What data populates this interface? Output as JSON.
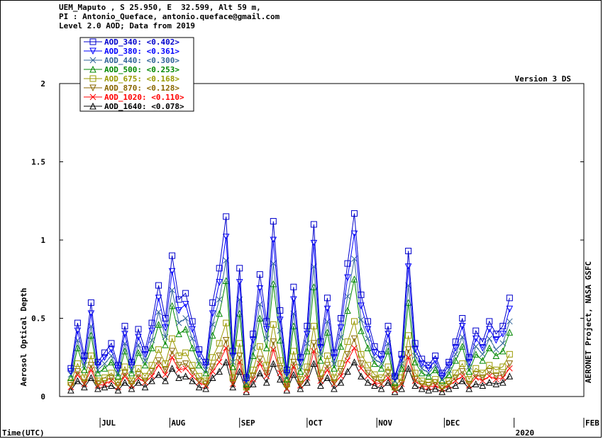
{
  "header": {
    "line1": "UEM_Maputo , S 25.950, E  32.599, Alt 59 m,",
    "line2": "PI : Antonio_Queface, antonio.queface@gmail.com",
    "line3": "Level 2.0 AOD; Data from 2019"
  },
  "version_label": "Version 3 DS",
  "right_label": "AERONET Project, NASA GSFC",
  "chart_data": {
    "type": "line",
    "xlabel": "Time(UTC)",
    "ylabel": "Aerosol Optical Depth",
    "ylim": [
      0,
      2
    ],
    "yticks": [
      "0",
      "0.5",
      "1",
      "1.5",
      "2"
    ],
    "xlim": [
      "2019-06-13",
      "2020-02-01"
    ],
    "x_ticks": [
      {
        "date": "2019-07-01",
        "label": "JUL"
      },
      {
        "date": "2019-08-01",
        "label": "AUG"
      },
      {
        "date": "2019-09-01",
        "label": "SEP"
      },
      {
        "date": "2019-10-01",
        "label": "OCT"
      },
      {
        "date": "2019-11-01",
        "label": "NOV"
      },
      {
        "date": "2019-12-01",
        "label": "DEC"
      },
      {
        "date": "2020-01-01",
        "label": "2020"
      },
      {
        "date": "2020-02-01",
        "label": "FEB"
      }
    ],
    "legend_position": "top-left",
    "dates": [
      "2019-06-18",
      "2019-06-21",
      "2019-06-24",
      "2019-06-27",
      "2019-06-30",
      "2019-07-03",
      "2019-07-06",
      "2019-07-09",
      "2019-07-12",
      "2019-07-15",
      "2019-07-18",
      "2019-07-21",
      "2019-07-24",
      "2019-07-27",
      "2019-07-30",
      "2019-08-02",
      "2019-08-05",
      "2019-08-08",
      "2019-08-11",
      "2019-08-14",
      "2019-08-17",
      "2019-08-20",
      "2019-08-23",
      "2019-08-26",
      "2019-08-29",
      "2019-09-01",
      "2019-09-04",
      "2019-09-07",
      "2019-09-10",
      "2019-09-13",
      "2019-09-16",
      "2019-09-19",
      "2019-09-22",
      "2019-09-25",
      "2019-09-28",
      "2019-10-01",
      "2019-10-04",
      "2019-10-07",
      "2019-10-10",
      "2019-10-13",
      "2019-10-16",
      "2019-10-19",
      "2019-10-22",
      "2019-10-25",
      "2019-10-28",
      "2019-10-31",
      "2019-11-03",
      "2019-11-06",
      "2019-11-09",
      "2019-11-12",
      "2019-11-15",
      "2019-11-18",
      "2019-11-21",
      "2019-11-24",
      "2019-11-27",
      "2019-11-30",
      "2019-12-03",
      "2019-12-06",
      "2019-12-09",
      "2019-12-12",
      "2019-12-15",
      "2019-12-18",
      "2019-12-21",
      "2019-12-24",
      "2019-12-27",
      "2019-12-30"
    ],
    "series": [
      {
        "name": "AOD_340",
        "mean": "<0.402>",
        "color": "#0000cc",
        "marker": "square",
        "values": [
          0.18,
          0.47,
          0.26,
          0.6,
          0.22,
          0.28,
          0.34,
          0.2,
          0.45,
          0.22,
          0.43,
          0.3,
          0.47,
          0.71,
          0.5,
          0.9,
          0.62,
          0.66,
          0.48,
          0.3,
          0.22,
          0.6,
          0.82,
          1.15,
          0.29,
          0.82,
          0.12,
          0.4,
          0.78,
          0.48,
          1.12,
          0.55,
          0.17,
          0.7,
          0.25,
          0.45,
          1.1,
          0.35,
          0.63,
          0.28,
          0.5,
          0.85,
          1.17,
          0.65,
          0.48,
          0.32,
          0.27,
          0.45,
          0.13,
          0.27,
          0.93,
          0.34,
          0.24,
          0.2,
          0.26,
          0.15,
          0.22,
          0.35,
          0.5,
          0.25,
          0.42,
          0.35,
          0.48,
          0.4,
          0.45,
          0.63
        ]
      },
      {
        "name": "AOD_380",
        "mean": "<0.361>",
        "color": "#0000ff",
        "marker": "triangle-down",
        "values": [
          0.16,
          0.42,
          0.23,
          0.53,
          0.2,
          0.25,
          0.3,
          0.18,
          0.4,
          0.2,
          0.38,
          0.27,
          0.42,
          0.63,
          0.44,
          0.8,
          0.55,
          0.59,
          0.43,
          0.27,
          0.2,
          0.53,
          0.73,
          1.02,
          0.26,
          0.73,
          0.11,
          0.36,
          0.69,
          0.43,
          1.0,
          0.49,
          0.15,
          0.62,
          0.22,
          0.4,
          0.98,
          0.31,
          0.56,
          0.25,
          0.44,
          0.76,
          1.04,
          0.58,
          0.43,
          0.28,
          0.24,
          0.4,
          0.12,
          0.24,
          0.83,
          0.3,
          0.21,
          0.18,
          0.23,
          0.13,
          0.2,
          0.31,
          0.45,
          0.22,
          0.37,
          0.31,
          0.43,
          0.36,
          0.4,
          0.56
        ]
      },
      {
        "name": "AOD_440",
        "mean": "<0.300>",
        "color": "#336699",
        "marker": "x",
        "values": [
          0.14,
          0.36,
          0.2,
          0.45,
          0.17,
          0.21,
          0.26,
          0.15,
          0.34,
          0.17,
          0.33,
          0.23,
          0.36,
          0.54,
          0.38,
          0.68,
          0.47,
          0.5,
          0.37,
          0.23,
          0.17,
          0.46,
          0.62,
          0.87,
          0.22,
          0.62,
          0.09,
          0.31,
          0.59,
          0.37,
          0.85,
          0.42,
          0.13,
          0.53,
          0.19,
          0.34,
          0.83,
          0.27,
          0.48,
          0.21,
          0.38,
          0.64,
          0.88,
          0.49,
          0.37,
          0.24,
          0.21,
          0.34,
          0.1,
          0.21,
          0.71,
          0.26,
          0.18,
          0.15,
          0.2,
          0.11,
          0.17,
          0.27,
          0.38,
          0.19,
          0.32,
          0.27,
          0.37,
          0.3,
          0.34,
          0.48
        ]
      },
      {
        "name": "AOD_500",
        "mean": "<0.253>",
        "color": "#008800",
        "marker": "triangle-up",
        "values": [
          0.12,
          0.31,
          0.17,
          0.39,
          0.15,
          0.18,
          0.22,
          0.13,
          0.29,
          0.15,
          0.28,
          0.2,
          0.31,
          0.46,
          0.33,
          0.58,
          0.4,
          0.43,
          0.31,
          0.2,
          0.15,
          0.39,
          0.53,
          0.74,
          0.19,
          0.53,
          0.08,
          0.26,
          0.5,
          0.31,
          0.72,
          0.36,
          0.11,
          0.45,
          0.16,
          0.29,
          0.7,
          0.23,
          0.41,
          0.18,
          0.32,
          0.55,
          0.75,
          0.42,
          0.31,
          0.21,
          0.18,
          0.29,
          0.09,
          0.18,
          0.6,
          0.22,
          0.15,
          0.13,
          0.17,
          0.1,
          0.14,
          0.23,
          0.32,
          0.16,
          0.27,
          0.23,
          0.31,
          0.26,
          0.29,
          0.41
        ]
      },
      {
        "name": "AOD_675",
        "mean": "<0.168>",
        "color": "#999900",
        "marker": "square",
        "values": [
          0.09,
          0.21,
          0.12,
          0.26,
          0.1,
          0.12,
          0.15,
          0.09,
          0.19,
          0.1,
          0.18,
          0.13,
          0.2,
          0.3,
          0.21,
          0.37,
          0.26,
          0.28,
          0.2,
          0.13,
          0.1,
          0.25,
          0.34,
          0.47,
          0.12,
          0.34,
          0.06,
          0.17,
          0.32,
          0.2,
          0.46,
          0.23,
          0.08,
          0.29,
          0.11,
          0.19,
          0.45,
          0.15,
          0.26,
          0.12,
          0.21,
          0.35,
          0.48,
          0.27,
          0.2,
          0.14,
          0.12,
          0.19,
          0.06,
          0.12,
          0.39,
          0.15,
          0.1,
          0.09,
          0.11,
          0.07,
          0.1,
          0.15,
          0.21,
          0.11,
          0.18,
          0.15,
          0.2,
          0.17,
          0.19,
          0.27
        ]
      },
      {
        "name": "AOD_870",
        "mean": "<0.128>",
        "color": "#886600",
        "marker": "triangle-down",
        "values": [
          0.07,
          0.16,
          0.09,
          0.2,
          0.08,
          0.1,
          0.12,
          0.07,
          0.15,
          0.08,
          0.14,
          0.1,
          0.16,
          0.23,
          0.17,
          0.29,
          0.2,
          0.21,
          0.16,
          0.1,
          0.08,
          0.19,
          0.26,
          0.36,
          0.09,
          0.26,
          0.05,
          0.13,
          0.24,
          0.15,
          0.35,
          0.18,
          0.06,
          0.22,
          0.08,
          0.15,
          0.34,
          0.11,
          0.2,
          0.09,
          0.16,
          0.27,
          0.37,
          0.21,
          0.15,
          0.11,
          0.09,
          0.15,
          0.05,
          0.09,
          0.3,
          0.11,
          0.08,
          0.07,
          0.09,
          0.05,
          0.08,
          0.12,
          0.16,
          0.08,
          0.14,
          0.12,
          0.16,
          0.13,
          0.14,
          0.21
        ]
      },
      {
        "name": "AOD_1020",
        "mean": "<0.110>",
        "color": "#ff0000",
        "marker": "x",
        "values": [
          0.06,
          0.14,
          0.08,
          0.17,
          0.07,
          0.08,
          0.1,
          0.06,
          0.13,
          0.07,
          0.12,
          0.09,
          0.13,
          0.2,
          0.14,
          0.25,
          0.17,
          0.18,
          0.13,
          0.09,
          0.07,
          0.16,
          0.22,
          0.31,
          0.08,
          0.22,
          0.04,
          0.11,
          0.21,
          0.13,
          0.3,
          0.15,
          0.05,
          0.19,
          0.07,
          0.12,
          0.29,
          0.1,
          0.17,
          0.08,
          0.13,
          0.23,
          0.31,
          0.18,
          0.13,
          0.09,
          0.08,
          0.12,
          0.04,
          0.08,
          0.25,
          0.1,
          0.07,
          0.06,
          0.07,
          0.05,
          0.07,
          0.1,
          0.13,
          0.07,
          0.12,
          0.1,
          0.13,
          0.11,
          0.12,
          0.18
        ]
      },
      {
        "name": "AOD_1640",
        "mean": "<0.078>",
        "color": "#000000",
        "marker": "triangle-up",
        "values": [
          0.04,
          0.1,
          0.06,
          0.12,
          0.05,
          0.06,
          0.07,
          0.04,
          0.09,
          0.05,
          0.09,
          0.06,
          0.1,
          0.14,
          0.1,
          0.18,
          0.12,
          0.13,
          0.1,
          0.06,
          0.05,
          0.12,
          0.16,
          0.22,
          0.06,
          0.16,
          0.03,
          0.08,
          0.15,
          0.09,
          0.21,
          0.11,
          0.04,
          0.14,
          0.05,
          0.09,
          0.21,
          0.07,
          0.12,
          0.05,
          0.09,
          0.16,
          0.22,
          0.13,
          0.09,
          0.07,
          0.05,
          0.09,
          0.03,
          0.05,
          0.18,
          0.07,
          0.05,
          0.04,
          0.05,
          0.03,
          0.05,
          0.07,
          0.1,
          0.05,
          0.08,
          0.07,
          0.09,
          0.08,
          0.09,
          0.13
        ]
      }
    ]
  }
}
